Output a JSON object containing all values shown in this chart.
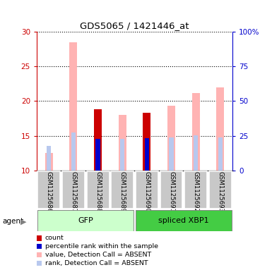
{
  "title": "GDS5065 / 1421446_at",
  "samples": [
    "GSM1125686",
    "GSM1125687",
    "GSM1125688",
    "GSM1125689",
    "GSM1125690",
    "GSM1125691",
    "GSM1125692",
    "GSM1125693"
  ],
  "group_labels": [
    "GFP",
    "spliced XBP1"
  ],
  "ylim_left": [
    10,
    30
  ],
  "ylim_right": [
    0,
    100
  ],
  "yticks_left": [
    10,
    15,
    20,
    25,
    30
  ],
  "yticks_right": [
    0,
    25,
    50,
    75,
    100
  ],
  "ytick_labels_right": [
    "0",
    "25",
    "50",
    "75",
    "100%"
  ],
  "bars": [
    {
      "sample": "GSM1125686",
      "pink_val": 12.5,
      "light_blue_val": 13.5,
      "red_val": null,
      "blue_val": null
    },
    {
      "sample": "GSM1125687",
      "pink_val": 28.5,
      "light_blue_val": 15.5,
      "red_val": null,
      "blue_val": null
    },
    {
      "sample": "GSM1125688",
      "pink_val": null,
      "light_blue_val": null,
      "red_val": 18.8,
      "blue_val": 14.5
    },
    {
      "sample": "GSM1125689",
      "pink_val": 18.0,
      "light_blue_val": 14.5,
      "red_val": null,
      "blue_val": null
    },
    {
      "sample": "GSM1125690",
      "pink_val": null,
      "light_blue_val": null,
      "red_val": 18.3,
      "blue_val": 14.7
    },
    {
      "sample": "GSM1125691",
      "pink_val": 19.3,
      "light_blue_val": 14.8,
      "red_val": null,
      "blue_val": null
    },
    {
      "sample": "GSM1125692",
      "pink_val": 21.2,
      "light_blue_val": 15.1,
      "red_val": null,
      "blue_val": null
    },
    {
      "sample": "GSM1125693",
      "pink_val": 22.0,
      "light_blue_val": 14.8,
      "red_val": null,
      "blue_val": null
    }
  ],
  "legend": [
    {
      "label": "count",
      "color": "#cc0000"
    },
    {
      "label": "percentile rank within the sample",
      "color": "#0000cc"
    },
    {
      "label": "value, Detection Call = ABSENT",
      "color": "#ffb3b3"
    },
    {
      "label": "rank, Detection Call = ABSENT",
      "color": "#b8c8ee"
    }
  ],
  "colors": {
    "red": "#cc0000",
    "blue": "#0000cc",
    "pink": "#ffb3b3",
    "light_blue": "#b8c8ee",
    "left_axis": "#cc0000",
    "right_axis": "#0000cc"
  },
  "gfp_color": "#ccffcc",
  "xbp1_color": "#44cc44"
}
